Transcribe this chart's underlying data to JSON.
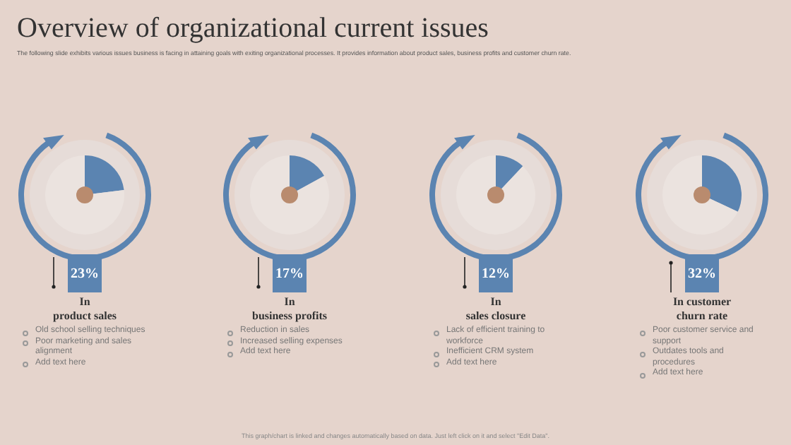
{
  "chart_data": [
    {
      "type": "other",
      "title": "Overview of organizational current issues",
      "subtitle": "The following slide exhibits various issues business is facing in attaining goals with exiting organizational processes. It provides information about product sales, business profits and customer churn rate.",
      "annotations": [
        "This graph/chart is linked and changes automatically based on data. Just left click on it and select \"Edit Data\"."
      ]
    },
    {
      "type": "donut",
      "title": "In\nproduct sales",
      "categories": [
        null,
        null
      ],
      "values": [
        23,
        77
      ],
      "colors": [
        "#5b84b1",
        "#ebe3df"
      ],
      "subtitle": "23%",
      "annotations": [
        "Old school selling techniques",
        "Poor marketing and sales alignment",
        "Add text here"
      ]
    },
    {
      "type": "donut",
      "title": "In\nbusiness profits",
      "categories": [
        null,
        null
      ],
      "values": [
        17,
        83
      ],
      "colors": [
        "#5b84b1",
        "#ebe3df"
      ],
      "subtitle": "17%",
      "annotations": [
        "Reduction in sales",
        "Increased selling expenses",
        "Add text here"
      ]
    },
    {
      "type": "donut",
      "title": "In\nsales closure",
      "categories": [
        null,
        null
      ],
      "values": [
        12,
        88
      ],
      "colors": [
        "#5b84b1",
        "#ebe3df"
      ],
      "subtitle": "12%",
      "annotations": [
        "Lack of efficient training to workforce",
        "Inefficient CRM system",
        "Add text here"
      ]
    },
    {
      "type": "donut",
      "title": "In customer\nchurn rate",
      "categories": [
        null,
        null
      ],
      "values": [
        32,
        68
      ],
      "colors": [
        "#5b84b1",
        "#ebe3df"
      ],
      "subtitle": "32%",
      "annotations": [
        "Poor customer service and support",
        "Outdates tools and procedures",
        "Add text here"
      ]
    }
  ]
}
